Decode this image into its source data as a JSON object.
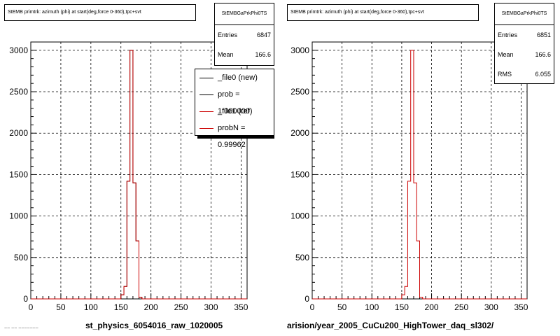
{
  "colors": {
    "new": "#000000",
    "ref": "#cc0000",
    "grid": "#000000",
    "bg": "#ffffff"
  },
  "left_panel": {
    "title": "StEMB primtrk: azimuth (phi) at start(deg,force 0-360),tpc+svt",
    "stats": {
      "name": "StEMBGaPrkPhi0TS",
      "rows": [
        {
          "k": "Entries",
          "v": "6847"
        },
        {
          "k": "Mean",
          "v": "166.6"
        }
      ]
    },
    "legend": [
      {
        "label": "_file0 (new)",
        "color": "#000000"
      },
      {
        "label": "prob = 1.000000",
        "color": "#000000"
      },
      {
        "label": "_file1 (ref)",
        "color": "#cc0000"
      },
      {
        "label": "probN = 0.99962",
        "color": "#cc0000"
      }
    ],
    "xlabel": "st_physics_6054016_raw_1020005",
    "corner_note": "~~ ~~ ~~~~~~~"
  },
  "right_panel": {
    "title": "StEMB primtrk: azimuth (phi) at start(deg,force 0-360),tpc+svt",
    "stats": {
      "name": "StEMBGaPrkPhi0TS",
      "rows": [
        {
          "k": "Entries",
          "v": "6851"
        },
        {
          "k": "Mean",
          "v": "166.6"
        },
        {
          "k": "RMS",
          "v": "6.055"
        }
      ]
    },
    "xlabel": "arision/year_2005_CuCu200_HighTower_daq_sl302/"
  },
  "chart_data": [
    {
      "type": "line",
      "title": "StEMB primtrk: azimuth (phi) at start(deg,force 0-360),tpc+svt",
      "xlabel": "st_physics_6054016_raw_1020005",
      "ylabel": "",
      "xlim": [
        0,
        360
      ],
      "ylim": [
        0,
        3100
      ],
      "x_ticks": [
        0,
        50,
        100,
        150,
        200,
        250,
        300,
        350
      ],
      "y_ticks": [
        0,
        500,
        1000,
        1500,
        2000,
        2500,
        3000
      ],
      "grid": true,
      "legend_position": "top-right",
      "bins": [
        150,
        155,
        160,
        165,
        170,
        175,
        180,
        185,
        190
      ],
      "series": [
        {
          "name": "_file0 (new)",
          "color": "#000000",
          "values": [
            50,
            150,
            1420,
            3000,
            1400,
            700,
            20,
            0,
            0
          ]
        },
        {
          "name": "_file1 (ref)",
          "color": "#cc0000",
          "values": [
            50,
            150,
            1420,
            3000,
            1400,
            700,
            20,
            0,
            0
          ]
        }
      ]
    },
    {
      "type": "line",
      "title": "StEMB primtrk: azimuth (phi) at start(deg,force 0-360),tpc+svt",
      "xlabel": "arision/year_2005_CuCu200_HighTower_daq_sl302/",
      "ylabel": "",
      "xlim": [
        0,
        360
      ],
      "ylim": [
        0,
        3100
      ],
      "x_ticks": [
        0,
        50,
        100,
        150,
        200,
        250,
        300,
        350
      ],
      "y_ticks": [
        0,
        500,
        1000,
        1500,
        2000,
        2500,
        3000
      ],
      "grid": true,
      "bins": [
        150,
        155,
        160,
        165,
        170,
        175,
        180,
        185,
        190
      ],
      "series": [
        {
          "name": "",
          "color": "#cc0000",
          "values": [
            50,
            150,
            1420,
            3000,
            1400,
            700,
            20,
            0,
            0
          ]
        }
      ]
    }
  ]
}
